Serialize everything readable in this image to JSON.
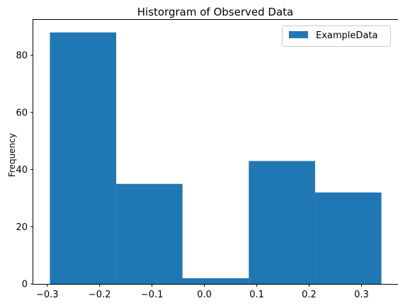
{
  "chart_data": {
    "type": "bar",
    "title": "Historgram of Observed Data",
    "xlabel": "",
    "ylabel": "Frequency",
    "bin_edges": [
      -0.295,
      -0.1684,
      -0.0418,
      0.0848,
      0.2114,
      0.338
    ],
    "values": [
      88,
      35,
      2,
      43,
      32
    ],
    "xlim": [
      -0.3267,
      0.3697
    ],
    "ylim": [
      0,
      92.4
    ],
    "xticks": [
      -0.3,
      -0.2,
      -0.1,
      0.0,
      0.1,
      0.2,
      0.3
    ],
    "xtick_labels": [
      "−0.3",
      "−0.2",
      "−0.1",
      "0.0",
      "0.1",
      "0.2",
      "0.3"
    ],
    "yticks": [
      0,
      20,
      40,
      60,
      80
    ],
    "ytick_labels": [
      "0",
      "20",
      "40",
      "60",
      "80"
    ],
    "series": [
      {
        "name": "ExampleData",
        "color": "#1f77b4"
      }
    ],
    "legend": {
      "position": "top-right"
    },
    "grid": false
  }
}
